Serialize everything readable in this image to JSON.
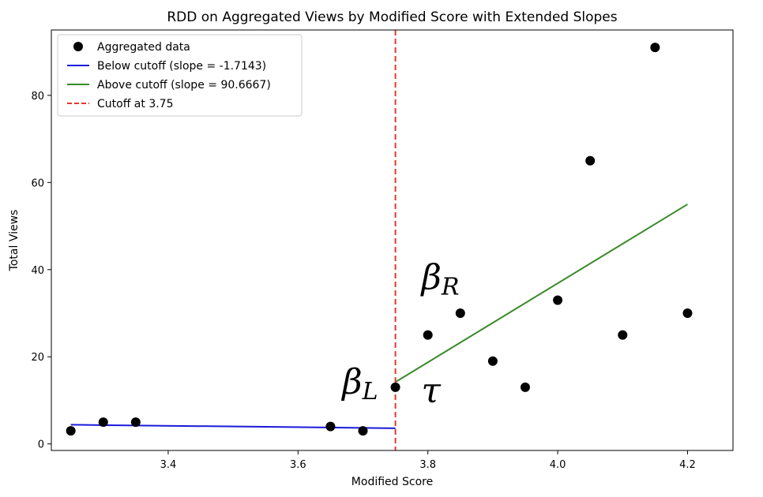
{
  "chart_data": {
    "type": "scatter",
    "title": "RDD on Aggregated Views by Modified Score with Extended Slopes",
    "xlabel": "Modified Score",
    "ylabel": "Total Views",
    "xlim": [
      3.22,
      4.27
    ],
    "ylim": [
      -1.5,
      95
    ],
    "xticks": [
      3.4,
      3.6,
      3.8,
      4.0,
      4.2
    ],
    "xtick_labels": [
      "3.4",
      "3.6",
      "3.8",
      "4.0",
      "4.2"
    ],
    "yticks": [
      0,
      20,
      40,
      60,
      80
    ],
    "ytick_labels": [
      "0",
      "20",
      "40",
      "60",
      "80"
    ],
    "grid": false,
    "legend_position": "upper-left",
    "points": {
      "name": "Aggregated data",
      "color": "#000000",
      "x": [
        3.25,
        3.3,
        3.35,
        3.65,
        3.7,
        3.75,
        3.8,
        3.85,
        3.9,
        3.95,
        4.0,
        4.05,
        4.1,
        4.15,
        4.2
      ],
      "y": [
        3,
        5,
        5,
        4,
        3,
        13,
        25,
        30,
        19,
        13,
        33,
        65,
        25,
        91,
        30
      ]
    },
    "lines": [
      {
        "name": "Below cutoff (slope = -1.7143)",
        "color": "#1a1adb",
        "x": [
          3.25,
          3.75
        ],
        "y": [
          4.4,
          3.6
        ]
      },
      {
        "name": "Above cutoff (slope = 90.6667)",
        "color": "#3a8a2a",
        "x": [
          3.75,
          4.2
        ],
        "y": [
          14.2,
          55.0
        ]
      }
    ],
    "cutoff": {
      "name": "Cutoff at 3.75",
      "x": 3.75,
      "color": "#e03a2f",
      "style": "dashed"
    },
    "annotations": [
      {
        "id": "beta-R",
        "symbol": "β",
        "subscript": "R",
        "x": 3.79,
        "y": 35.5
      },
      {
        "id": "beta-L",
        "symbol": "β",
        "subscript": "L",
        "x": 3.668,
        "y": 11.5
      },
      {
        "id": "tau",
        "symbol": "τ",
        "subscript": "",
        "x": 3.79,
        "y": 9.5
      }
    ]
  }
}
